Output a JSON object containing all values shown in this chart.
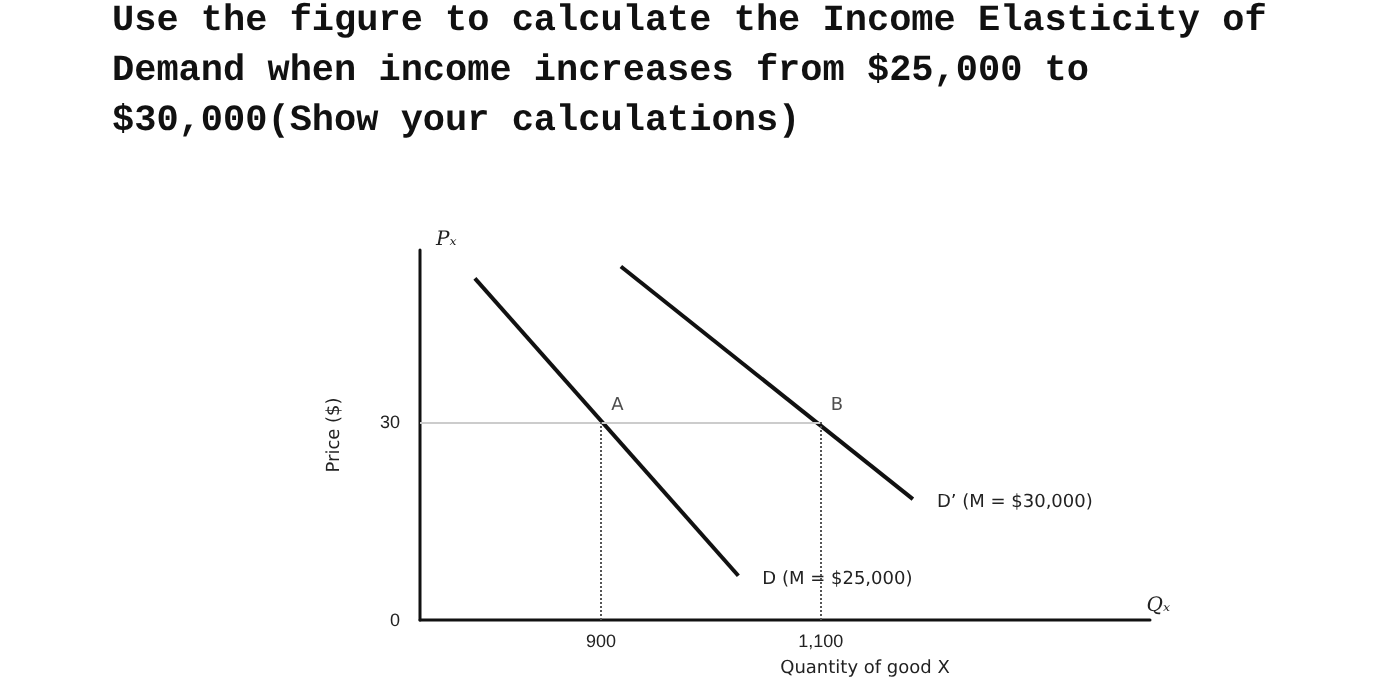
{
  "chart_data": {
    "type": "line",
    "title": "Use the figure to calculate the Income Elasticity of Demand when income increases from $25,000 to $30,000(Show your calculations)",
    "xlabel": "Quantity of good X",
    "ylabel": "Price ($)",
    "annotations": [
      "Pₓ",
      "Qₓ",
      {
        "text": "A",
        "x": 900,
        "y": 30
      },
      {
        "text": "B",
        "x": 1100,
        "y": 30
      }
    ],
    "series": [
      {
        "name": "D (M = $25,000)",
        "color": "#111111",
        "x": [
          785,
          1025
        ],
        "values": [
          51.7,
          6.7
        ]
      },
      {
        "name": "D’ (M = $30,000)",
        "color": "#111111",
        "x": [
          918,
          1184
        ],
        "values": [
          53.5,
          18.3
        ]
      }
    ],
    "xlim": [
      735,
      1400
    ],
    "xticks": [
      900,
      {
        "value": 1100,
        "label": "1,100"
      }
    ],
    "ylim": [
      0,
      56
    ],
    "yticks": [
      0,
      30
    ],
    "ref_lines": [
      {
        "axis": "y",
        "value": 30,
        "color": "#cccccc",
        "line_style": "solid"
      },
      {
        "axis": "x",
        "value": 900,
        "color": "#555555",
        "line_style": "dotted"
      },
      {
        "axis": "x",
        "value": 1100,
        "color": "#555555",
        "line_style": "dotted"
      }
    ],
    "grid": false,
    "legend": false,
    "marker": "none",
    "line_style": "solid"
  }
}
